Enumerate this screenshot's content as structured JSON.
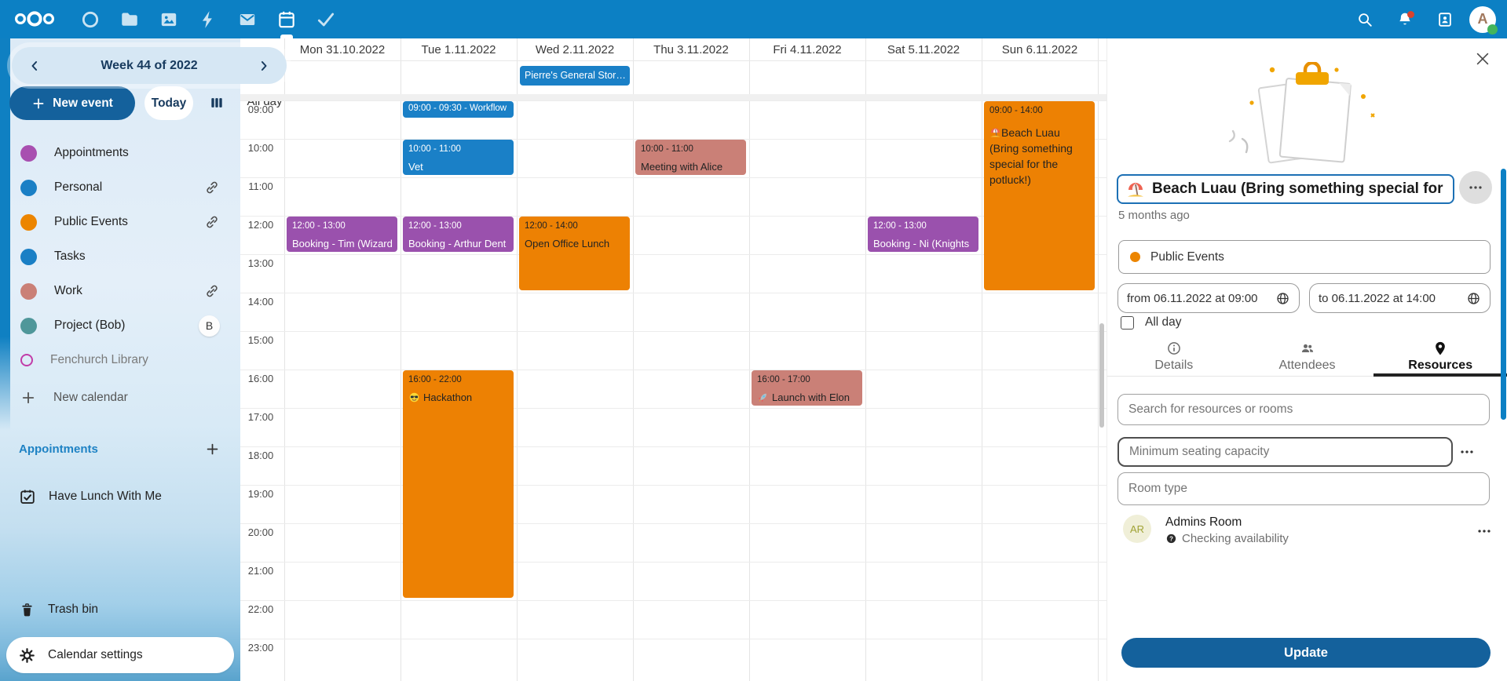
{
  "colors": {
    "header_bg": "#0c80c4",
    "primary_button": "#14619c",
    "event_blue": "#1a80c7",
    "event_purple": "#9a51ad",
    "event_orange": "#ed8103",
    "event_salmon": "#ca8077",
    "event_dark_text": "#232323",
    "event_light_text": "#ffffff"
  },
  "header": {
    "apps": [
      {
        "id": "talk",
        "icon": "talk"
      },
      {
        "id": "files",
        "icon": "folder"
      },
      {
        "id": "photos",
        "icon": "photos"
      },
      {
        "id": "activity",
        "icon": "bolt"
      },
      {
        "id": "mail",
        "icon": "mail"
      },
      {
        "id": "calendar",
        "icon": "calendar",
        "active": true
      },
      {
        "id": "tasks",
        "icon": "check"
      }
    ],
    "right": [
      {
        "id": "search",
        "icon": "search"
      },
      {
        "id": "notifications",
        "icon": "bell",
        "unread": true
      },
      {
        "id": "contacts",
        "icon": "contacts"
      }
    ],
    "avatar": {
      "letter": "A",
      "online": true
    }
  },
  "sidebar": {
    "week_label": "Week 44 of 2022",
    "new_event": "New event",
    "today": "Today",
    "calendars": [
      {
        "name": "Appointments",
        "color": "#a84fb0"
      },
      {
        "name": "Personal",
        "color": "#1a7fc5",
        "shared": true
      },
      {
        "name": "Public Events",
        "color": "#ec8500",
        "shared": true
      },
      {
        "name": "Tasks",
        "color": "#1a7fc5"
      },
      {
        "name": "Work",
        "color": "#ca8077",
        "shared": true
      },
      {
        "name": "Project (Bob)",
        "color": "#4f979a",
        "badge": "B"
      },
      {
        "name": "Fenchurch Library",
        "color": "#c13ca8",
        "ring": true,
        "disabled": true
      }
    ],
    "new_calendar": "New calendar",
    "section": {
      "title": "Appointments",
      "items": [
        "Have Lunch With Me"
      ]
    },
    "trash": "Trash bin",
    "settings": "Calendar settings"
  },
  "calendar": {
    "allday_label": "All day",
    "days": [
      "Mon 31.10.2022",
      "Tue 1.11.2022",
      "Wed 2.11.2022",
      "Thu 3.11.2022",
      "Fri 4.11.2022",
      "Sat 5.11.2022",
      "Sun 6.11.2022"
    ],
    "times": [
      "09:00",
      "10:00",
      "11:00",
      "12:00",
      "13:00",
      "14:00",
      "15:00",
      "16:00",
      "17:00",
      "18:00",
      "19:00",
      "20:00",
      "21:00",
      "22:00",
      "23:00"
    ],
    "allday_events": [
      {
        "day": 2,
        "title": "Pierre's General Stor…",
        "color": "blue"
      }
    ],
    "events": [
      {
        "day": 1,
        "start": 9,
        "end": 9.5,
        "time": "09:00 - 09:30",
        "title": "Workflow",
        "color": "blue",
        "inline": true
      },
      {
        "day": 1,
        "start": 10,
        "end": 11,
        "time": "10:00 - 11:00",
        "title": "Vet",
        "color": "blue"
      },
      {
        "day": 3,
        "start": 10,
        "end": 11,
        "time": "10:00 - 11:00",
        "title": "Meeting with Alice",
        "color": "salmon",
        "text": "dark"
      },
      {
        "day": 0,
        "start": 12,
        "end": 13,
        "time": "12:00 - 13:00",
        "title": "Booking - Tim (Wizard)",
        "color": "purple"
      },
      {
        "day": 1,
        "start": 12,
        "end": 13,
        "time": "12:00 - 13:00",
        "title": "Booking - Arthur Dent",
        "color": "purple"
      },
      {
        "day": 2,
        "start": 12,
        "end": 14,
        "time": "12:00 - 14:00",
        "title": "Open Office Lunch",
        "color": "orange",
        "text": "dark"
      },
      {
        "day": 5,
        "start": 12,
        "end": 13,
        "time": "12:00 - 13:00",
        "title": "Booking - Ni (Knights",
        "color": "purple"
      },
      {
        "day": 6,
        "start": 9,
        "end": 14,
        "time": "09:00 - 14:00",
        "title": "Beach Luau (Bring something special for the potluck!)",
        "color": "orange",
        "text": "dark",
        "emoji": "🏖️",
        "icon": "beach",
        "wrap": true
      },
      {
        "day": 1,
        "start": 16,
        "end": 22,
        "time": "16:00 - 22:00",
        "title": "Hackathon",
        "color": "orange",
        "text": "dark",
        "emoji": "😎",
        "icon": "sunglasses"
      },
      {
        "day": 4,
        "start": 16,
        "end": 17,
        "time": "16:00 - 17:00",
        "title": "Launch with Elon",
        "color": "salmon",
        "text": "dark",
        "emoji": "🚀",
        "icon": "rocket"
      }
    ]
  },
  "panel": {
    "title": "Beach Luau (Bring something special for",
    "title_emoji": "🏖️",
    "modified": "5 months ago",
    "calendar_name": "Public Events",
    "calendar_color": "#ec8500",
    "from": "from 06.11.2022 at 09:00",
    "to": "to 06.11.2022 at 14:00",
    "allday": "All day",
    "allday_checked": false,
    "tabs": [
      {
        "label": "Details",
        "icon": "info"
      },
      {
        "label": "Attendees",
        "icon": "people"
      },
      {
        "label": "Resources",
        "icon": "pin",
        "active": true
      }
    ],
    "search_placeholder": "Search for resources or rooms",
    "capacity_placeholder": "Minimum seating capacity",
    "room_type_placeholder": "Room type",
    "resource": {
      "initials": "AR",
      "name": "Admins Room",
      "status": "Checking availability"
    },
    "update": "Update"
  }
}
